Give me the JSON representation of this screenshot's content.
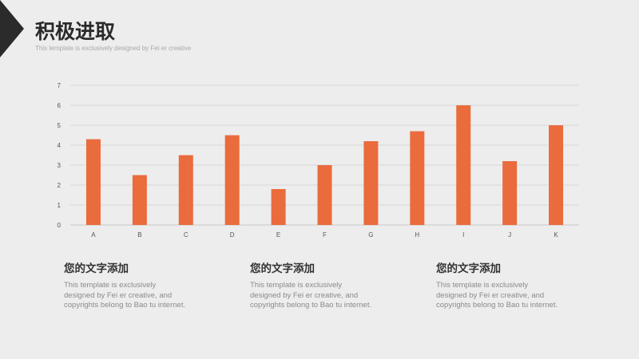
{
  "header": {
    "title": "积极进取",
    "subtitle": "This template is exclusively designed  by Fei er creative"
  },
  "chart_data": {
    "type": "bar",
    "categories": [
      "A",
      "B",
      "C",
      "D",
      "E",
      "F",
      "G",
      "H",
      "I",
      "J",
      "K"
    ],
    "values": [
      4.3,
      2.5,
      3.5,
      4.5,
      1.8,
      3.0,
      4.2,
      4.7,
      6.0,
      3.2,
      5.0
    ],
    "ylim": [
      0,
      7
    ],
    "yticks": [
      0,
      1,
      2,
      3,
      4,
      5,
      6,
      7
    ],
    "grid": true,
    "bar_color": "#ea6b3c",
    "grid_color": "#d6d6d6",
    "title": "",
    "xlabel": "",
    "ylabel": ""
  },
  "columns": [
    {
      "heading": "您的文字添加",
      "body": [
        "This template is exclusively",
        "designed by Fei er creative, and",
        "copyrights belong to Bao tu internet."
      ]
    },
    {
      "heading": "您的文字添加",
      "body": [
        "This template is exclusively",
        "designed by Fei er creative, and",
        "copyrights belong to Bao tu internet."
      ]
    },
    {
      "heading": "您的文字添加",
      "body": [
        "This template is exclusively",
        "designed by Fei er creative, and",
        "copyrights belong to Bao tu internet."
      ]
    }
  ]
}
